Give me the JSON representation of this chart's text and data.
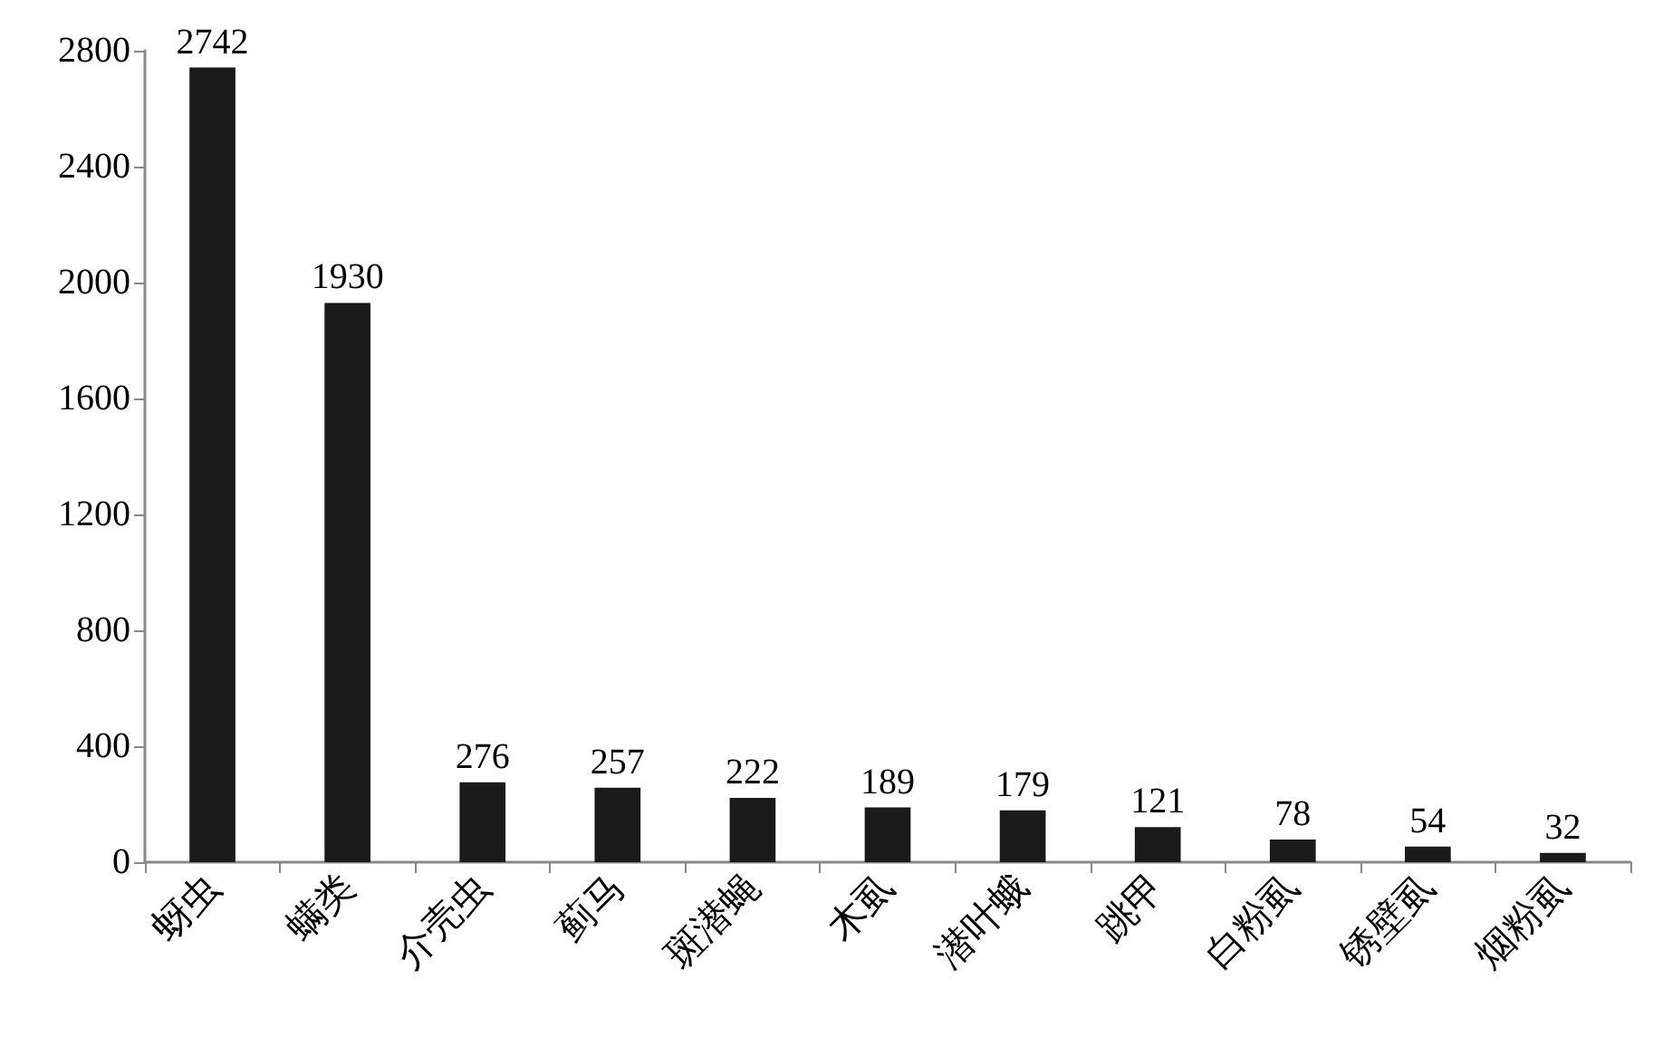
{
  "chart_data": {
    "type": "bar",
    "categories": [
      "蚜虫",
      "螨类",
      "介壳虫",
      "蓟马",
      "斑潜蝇",
      "木虱",
      "潜叶蛾",
      "跳甲",
      "白粉虱",
      "锈壁虱",
      "烟粉虱"
    ],
    "values": [
      2742,
      1930,
      276,
      257,
      222,
      189,
      179,
      121,
      78,
      54,
      32
    ],
    "color": "#1a1a1a",
    "ylim": [
      0,
      2800
    ],
    "yticks": [
      0,
      400,
      800,
      1200,
      1600,
      2000,
      2400,
      2800
    ],
    "data_labels": true
  }
}
